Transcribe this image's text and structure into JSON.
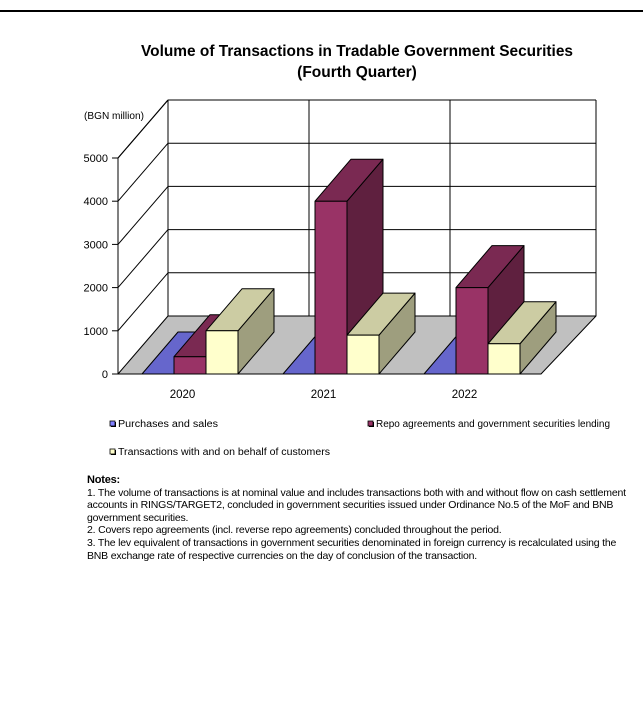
{
  "chart_data": {
    "type": "bar",
    "title_line1": "Volume of Transactions in Tradable Government Securities",
    "title_line2": "(Fourth Quarter)",
    "unit_label": "(BGN million)",
    "categories": [
      "2020",
      "2021",
      "2022"
    ],
    "y_ticks": [
      "0",
      "1000",
      "2000",
      "3000",
      "4000",
      "5000"
    ],
    "ylim": [
      0,
      5000
    ],
    "three_d": true,
    "grid": true,
    "legend_position": "bottom",
    "series": [
      {
        "name": "Purchases and sales",
        "values": [
          0,
          0,
          0
        ],
        "color": "#8080ff"
      },
      {
        "name": "Repo agreements and government securities lending",
        "values": [
          400,
          4000,
          2000
        ],
        "color": "#993366"
      },
      {
        "name": "Transactions with and on behalf of customers",
        "values": [
          1000,
          900,
          700
        ],
        "color": "#ffffcc"
      }
    ]
  },
  "notes": {
    "title": "Notes:",
    "items": [
      "1.  The volume of transactions is at nominal value and includes transactions both with and without flow on cash settlement accounts in RINGS/TARGET2, concluded in government securities issued under Ordinance No.5 of the MoF and BNB government securities.",
      "2.  Covers repo agreements (incl. reverse repo agreements) concluded throughout the period.",
      "3. The lev equivalent of transactions in government securities denominated in foreign currency is recalculated using the BNB exchange rate of respective currencies on the day of conclusion of the transaction."
    ]
  }
}
